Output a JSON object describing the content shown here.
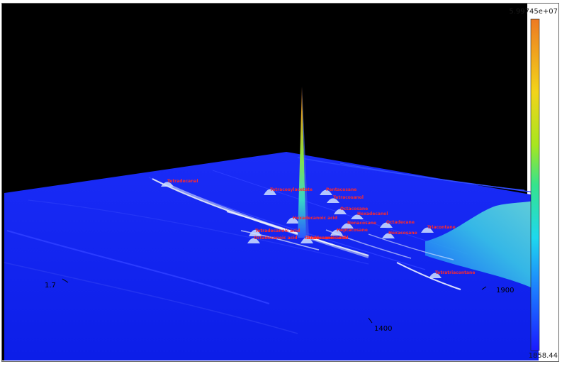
{
  "colorbar": {
    "max_label": "5.99745e+07",
    "min_label": "1858.44"
  },
  "colors": {
    "background": "#000000",
    "low": "#0a1cff",
    "mid": "#39d9d0",
    "high": "#e8841f",
    "peak_label": "#ff2a2a"
  },
  "chart_data": {
    "type": "surface-3d",
    "title": "",
    "axes": {
      "x": {
        "label": "",
        "ticks": [
          "1400",
          "1900"
        ]
      },
      "y": {
        "label": "",
        "ticks": [
          "1.7"
        ]
      },
      "z": {
        "label": "",
        "min": 1858.44,
        "max": 59974500,
        "scale": "linear"
      }
    },
    "peaks": [
      {
        "name": "Tetradecanal",
        "intensity": 0.04
      },
      {
        "name": "Tetracosylacetate",
        "intensity": 0.06
      },
      {
        "name": "Pentacosane",
        "intensity": 0.05
      },
      {
        "name": "Tetracosanol",
        "intensity": 0.04
      },
      {
        "name": "Octacosane",
        "intensity": 0.05
      },
      {
        "name": "Hexadecanoic acid",
        "intensity": 0.06
      },
      {
        "name": "Hexadecanol",
        "intensity": 0.04
      },
      {
        "name": "Nonacosane",
        "intensity": 0.05
      },
      {
        "name": "Octadecane",
        "intensity": 0.05
      },
      {
        "name": "Heptacosane",
        "intensity": 0.06
      },
      {
        "name": "Hexacosane",
        "intensity": 0.05
      },
      {
        "name": "Tetradecanoic acid",
        "intensity": 0.07
      },
      {
        "name": "Triacontane",
        "intensity": 0.05
      },
      {
        "name": "Octadecanoic acid",
        "intensity": 1.0
      },
      {
        "name": "Dodecanoic acid",
        "intensity": 0.06
      },
      {
        "name": "Octadecanoic acid",
        "intensity": 0.05
      },
      {
        "name": "Tetratriacontane",
        "intensity": 0.05
      }
    ],
    "grid": false,
    "colormap": "jet",
    "colorbar": "right"
  }
}
